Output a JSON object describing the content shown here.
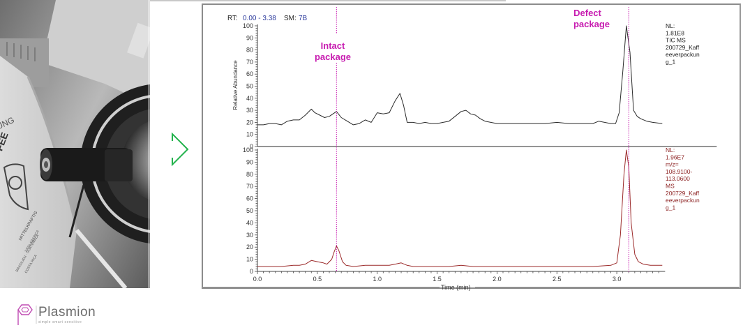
{
  "photo": {
    "description": "grayscale photo of coffee package sampled by probe",
    "visible_text": [
      "UNG",
      "FEE",
      "MITTELKRAFTIG",
      "100% ARABICA",
      "BRASILIEN GUATEMALA",
      "COSTA RICA"
    ]
  },
  "arrow": {
    "icon": "chevron-right-icon",
    "color": "#22b24c"
  },
  "chart_data": {
    "type": "line",
    "header": {
      "rt_label": "RT:",
      "rt_value": "0.00 - 3.38",
      "sm_label": "SM:",
      "sm_value": "7B"
    },
    "xlabel": "Time (min)",
    "xlim": [
      0.0,
      3.38
    ],
    "xticks": [
      "0.0",
      "0.5",
      "1.0",
      "1.5",
      "2.0",
      "2.5",
      "3.0"
    ],
    "ylabel": "Relative Abundance",
    "ylim": [
      0,
      100
    ],
    "yticks": [
      "0",
      "10",
      "20",
      "30",
      "40",
      "50",
      "60",
      "70",
      "80",
      "90",
      "100"
    ],
    "annotations": [
      {
        "label_line1": "Intact",
        "label_line2": "package",
        "x": 0.66,
        "color": "#c71cb0"
      },
      {
        "label_line1": "Defect",
        "label_line2": "package",
        "x": 3.1,
        "color": "#c71cb0"
      }
    ],
    "series": [
      {
        "name": "TIC MS",
        "panel": "top",
        "color": "#2b2b2b",
        "info": [
          "NL:",
          "1.81E8",
          "TIC  MS",
          "200729_Kaff",
          "eeverpackun",
          "g_1"
        ],
        "x": [
          0.0,
          0.05,
          0.1,
          0.15,
          0.2,
          0.25,
          0.3,
          0.35,
          0.4,
          0.45,
          0.48,
          0.52,
          0.56,
          0.6,
          0.66,
          0.7,
          0.75,
          0.8,
          0.85,
          0.9,
          0.95,
          1.0,
          1.05,
          1.1,
          1.15,
          1.19,
          1.22,
          1.25,
          1.3,
          1.35,
          1.4,
          1.45,
          1.5,
          1.55,
          1.6,
          1.65,
          1.7,
          1.74,
          1.78,
          1.82,
          1.86,
          1.9,
          2.0,
          2.1,
          2.2,
          2.3,
          2.4,
          2.5,
          2.6,
          2.7,
          2.8,
          2.85,
          2.95,
          2.99,
          3.02,
          3.05,
          3.08,
          3.11,
          3.14,
          3.17,
          3.2,
          3.25,
          3.3,
          3.38
        ],
        "y": [
          18,
          18,
          19,
          19,
          18,
          21,
          22,
          22,
          26,
          31,
          28,
          26,
          24,
          25,
          29,
          24,
          21,
          18,
          19,
          22,
          20,
          28,
          27,
          28,
          38,
          44,
          34,
          20,
          20,
          19,
          20,
          19,
          19,
          20,
          21,
          25,
          29,
          30,
          27,
          26,
          23,
          21,
          19,
          19,
          19,
          19,
          19,
          20,
          19,
          19,
          19,
          21,
          19,
          19,
          28,
          62,
          100,
          78,
          30,
          25,
          23,
          21,
          20,
          19
        ]
      },
      {
        "name": "m/z= 108.9100-113.0600 MS",
        "panel": "bottom",
        "color": "#9b2a2a",
        "info": [
          "NL:",
          "1.96E7",
          "m/z=",
          "108.9100-",
          "113.0600",
          "MS",
          "200729_Kaff",
          "eeverpackun",
          "g_1"
        ],
        "x": [
          0.0,
          0.1,
          0.2,
          0.3,
          0.35,
          0.4,
          0.45,
          0.5,
          0.55,
          0.58,
          0.62,
          0.64,
          0.66,
          0.68,
          0.71,
          0.74,
          0.8,
          0.9,
          1.0,
          1.1,
          1.15,
          1.2,
          1.25,
          1.3,
          1.4,
          1.5,
          1.6,
          1.7,
          1.8,
          1.9,
          2.0,
          2.2,
          2.4,
          2.6,
          2.8,
          2.95,
          3.0,
          3.03,
          3.06,
          3.08,
          3.1,
          3.12,
          3.15,
          3.18,
          3.22,
          3.28,
          3.38
        ],
        "y": [
          4,
          4,
          4,
          5,
          5,
          6,
          9,
          8,
          7,
          6,
          10,
          16,
          21,
          17,
          8,
          5,
          4,
          5,
          5,
          5,
          6,
          7,
          5,
          4,
          4,
          4,
          4,
          5,
          4,
          4,
          4,
          4,
          4,
          4,
          4,
          5,
          7,
          30,
          80,
          100,
          86,
          40,
          14,
          8,
          6,
          5,
          5
        ]
      }
    ]
  },
  "brand": {
    "name": "Plasmion",
    "tagline": "simple  smart  sensitive",
    "logo_color": "#c04bb3"
  }
}
